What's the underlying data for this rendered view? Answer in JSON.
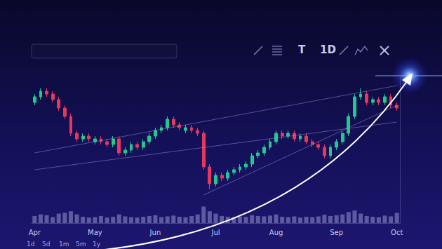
{
  "chart_data": {
    "type": "candlestick",
    "categories": [
      "Apr",
      null,
      null,
      null,
      null,
      null,
      null,
      null,
      null,
      null,
      "May",
      null,
      null,
      null,
      null,
      null,
      null,
      null,
      null,
      null,
      "Jun",
      null,
      null,
      null,
      null,
      null,
      null,
      null,
      null,
      null,
      "Jul",
      null,
      null,
      null,
      null,
      null,
      null,
      null,
      null,
      null,
      "Aug",
      null,
      null,
      null,
      null,
      null,
      null,
      null,
      null,
      null,
      "Sep",
      null,
      null,
      null,
      null,
      null,
      null,
      null,
      null,
      null,
      "Oct"
    ],
    "values": [
      [
        81,
        83,
        80,
        84
      ],
      [
        83,
        85,
        82,
        86
      ],
      [
        85,
        84,
        83,
        86
      ],
      [
        84,
        82,
        81,
        85
      ],
      [
        82,
        79,
        78,
        83
      ],
      [
        79,
        76,
        75,
        80
      ],
      [
        76,
        70,
        69,
        77
      ],
      [
        70,
        68,
        67,
        71
      ],
      [
        68,
        69,
        67,
        70
      ],
      [
        69,
        68,
        67,
        70
      ],
      [
        67,
        68,
        66,
        69
      ],
      [
        68,
        67,
        66,
        69
      ],
      [
        67,
        66,
        65,
        68
      ],
      [
        66,
        68,
        65,
        69
      ],
      [
        68,
        63,
        62,
        69
      ],
      [
        63,
        64,
        62,
        65
      ],
      [
        64,
        66,
        63,
        67
      ],
      [
        66,
        65,
        64,
        67
      ],
      [
        65,
        67,
        64,
        68
      ],
      [
        67,
        69,
        66,
        70
      ],
      [
        69,
        71,
        68,
        72
      ],
      [
        71,
        72,
        70,
        73
      ],
      [
        72,
        75,
        71,
        76
      ],
      [
        75,
        73,
        72,
        76
      ],
      [
        73,
        72,
        71,
        74
      ],
      [
        71,
        72,
        70,
        73
      ],
      [
        72,
        71,
        70,
        73
      ],
      [
        71,
        70,
        69,
        72
      ],
      [
        70,
        58,
        57,
        71
      ],
      [
        58,
        52,
        50,
        59
      ],
      [
        52,
        55,
        51,
        56
      ],
      [
        55,
        54,
        53,
        56
      ],
      [
        54,
        56,
        53,
        57
      ],
      [
        56,
        57,
        55,
        58
      ],
      [
        57,
        58,
        56,
        59
      ],
      [
        58,
        59,
        57,
        60
      ],
      [
        59,
        62,
        58,
        63
      ],
      [
        62,
        63,
        61,
        64
      ],
      [
        63,
        65,
        62,
        66
      ],
      [
        65,
        67,
        64,
        68
      ],
      [
        67,
        70,
        66,
        71
      ],
      [
        70,
        69,
        68,
        71
      ],
      [
        69,
        70,
        68,
        71
      ],
      [
        70,
        68,
        67,
        71
      ],
      [
        68,
        69,
        67,
        70
      ],
      [
        69,
        67,
        66,
        70
      ],
      [
        67,
        66,
        65,
        68
      ],
      [
        66,
        65,
        64,
        67
      ],
      [
        65,
        62,
        61,
        66
      ],
      [
        62,
        65,
        61,
        66
      ],
      [
        65,
        67,
        64,
        68
      ],
      [
        67,
        70,
        66,
        71
      ],
      [
        70,
        76,
        69,
        77
      ],
      [
        76,
        83,
        75,
        84
      ],
      [
        83,
        84,
        82,
        86
      ],
      [
        84,
        81,
        80,
        85
      ],
      [
        81,
        82,
        80,
        83
      ],
      [
        82,
        81,
        80,
        83
      ],
      [
        81,
        83,
        80,
        84
      ],
      [
        83,
        80,
        79,
        84
      ],
      [
        80,
        79,
        78,
        81
      ]
    ],
    "ylim": [
      45,
      90
    ],
    "volume": [
      18,
      22,
      20,
      15,
      24,
      26,
      30,
      22,
      16,
      14,
      15,
      18,
      14,
      16,
      22,
      17,
      15,
      14,
      16,
      18,
      20,
      15,
      17,
      19,
      16,
      15,
      18,
      22,
      42,
      30,
      24,
      18,
      16,
      15,
      17,
      16,
      20,
      18,
      17,
      19,
      22,
      16,
      15,
      17,
      14,
      16,
      15,
      17,
      21,
      18,
      20,
      22,
      28,
      32,
      24,
      18,
      16,
      15,
      19,
      17,
      26
    ],
    "y2lim": [
      0,
      50
    ],
    "trend_lines": [
      [
        [
          0,
          63
        ],
        [
          60,
          87
        ]
      ],
      [
        [
          0,
          57
        ],
        [
          60,
          74
        ]
      ],
      [
        [
          28,
          48
        ],
        [
          60,
          80
        ]
      ]
    ],
    "tick_labels": "x",
    "grid": false,
    "annotations": [
      "T",
      "1D"
    ],
    "range_buttons": [
      "1d",
      "5d",
      "1m",
      "5m",
      "1y"
    ]
  }
}
